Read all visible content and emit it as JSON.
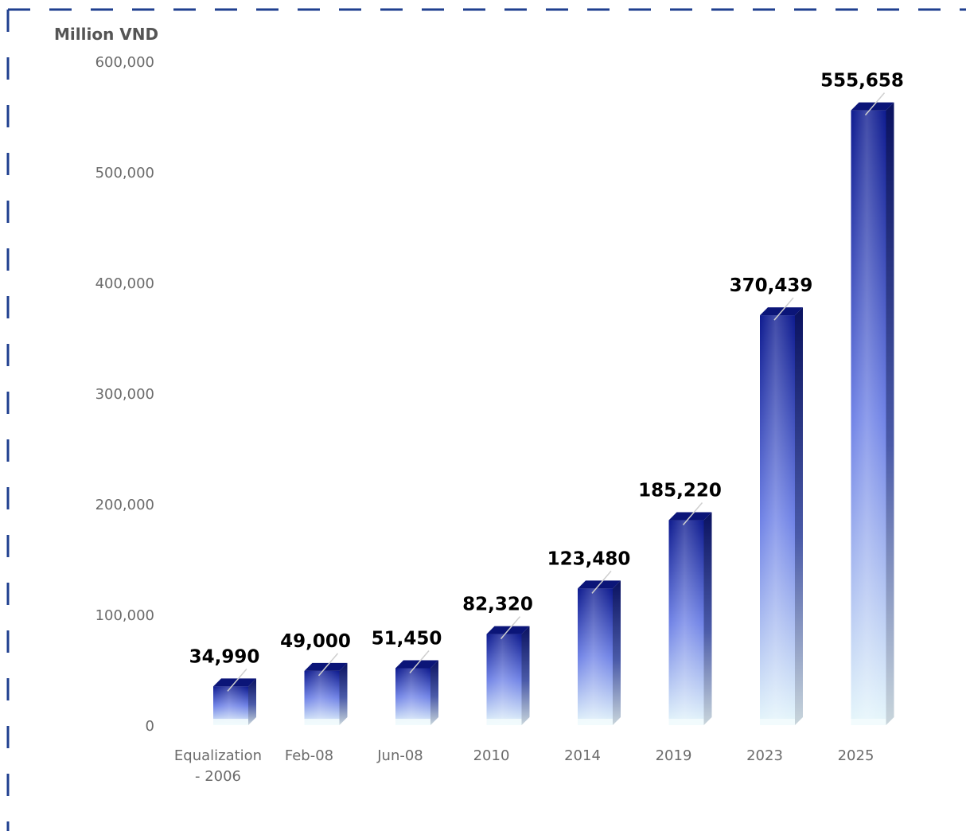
{
  "chart_data": {
    "type": "bar",
    "ylabel": "Million VND",
    "ylim": [
      0,
      600000
    ],
    "yticks": [
      "0",
      "100,000",
      "200,000",
      "300,000",
      "400,000",
      "500,000",
      "600,000"
    ],
    "yticks_values": [
      0,
      100000,
      200000,
      300000,
      400000,
      500000,
      600000
    ],
    "categories": [
      "Equalization - 2006",
      "Feb-08",
      "Jun-08",
      "2010",
      "2014",
      "2019",
      "2023",
      "2025"
    ],
    "category_lines": [
      [
        "Equalization",
        "- 2006"
      ],
      [
        "Feb-08"
      ],
      [
        "Jun-08"
      ],
      [
        "2010"
      ],
      [
        "2014"
      ],
      [
        "2019"
      ],
      [
        "2023"
      ],
      [
        "2025"
      ]
    ],
    "values": [
      34990,
      49000,
      51450,
      82320,
      123480,
      185220,
      370439,
      555658
    ],
    "value_labels": [
      "34,990",
      "49,000",
      "51,450",
      "82,320",
      "123,480",
      "185,220",
      "370,439",
      "555,658"
    ],
    "grid": false,
    "legend": "none",
    "colors": {
      "bar_top": "#0d1a8f",
      "bar_mid": "#6f82e6",
      "bar_bottom": "#e6f7fb",
      "frame_dash": "#1f3f8f"
    }
  }
}
